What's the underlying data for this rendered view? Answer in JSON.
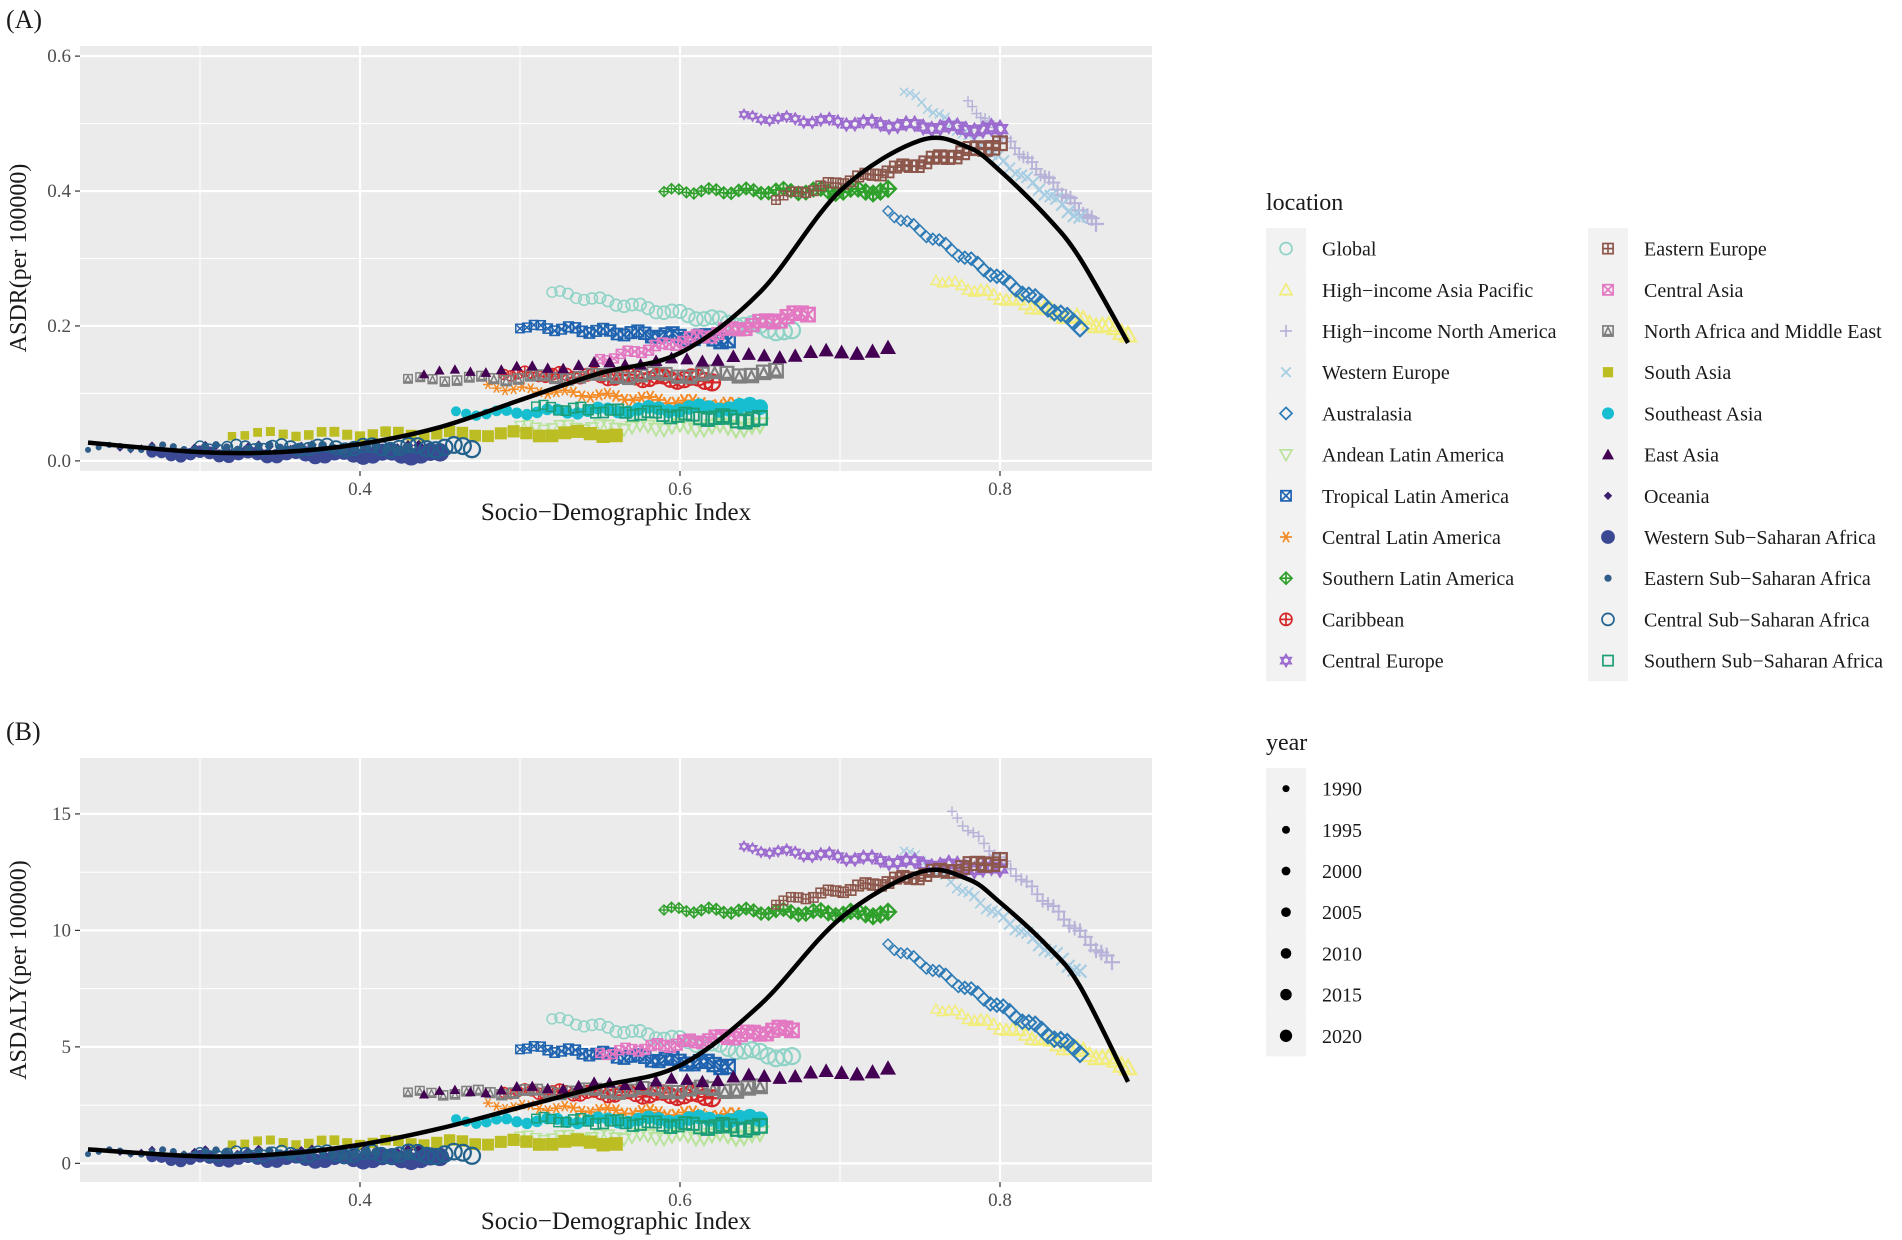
{
  "chart_data": [
    {
      "type": "scatter",
      "panel_label": "(A)",
      "title": "",
      "xlabel": "Socio−Demographic Index",
      "ylabel": "ASDR(per 100000)",
      "xlim": [
        0.225,
        0.895
      ],
      "ylim": [
        -0.015,
        0.615
      ],
      "xticks": [
        0.4,
        0.6,
        0.8
      ],
      "xtick_labels": [
        "0.4",
        "0.6",
        "0.8"
      ],
      "yticks": [
        0.0,
        0.2,
        0.4,
        0.6
      ],
      "ytick_labels": [
        "0.0",
        "0.2",
        "0.4",
        "0.6"
      ],
      "grid": true,
      "series": [
        {
          "name": "Global",
          "x_range": [
            0.52,
            0.67
          ],
          "y_start": 0.25,
          "y_end": 0.19
        },
        {
          "name": "High−income Asia Pacific",
          "x_range": [
            0.76,
            0.88
          ],
          "y_start": 0.27,
          "y_end": 0.19
        },
        {
          "name": "High−income North America",
          "x_range": [
            0.78,
            0.86
          ],
          "y_start": 0.53,
          "y_end": 0.35
        },
        {
          "name": "Western Europe",
          "x_range": [
            0.74,
            0.85
          ],
          "y_start": 0.55,
          "y_end": 0.36
        },
        {
          "name": "Australasia",
          "x_range": [
            0.73,
            0.85
          ],
          "y_start": 0.37,
          "y_end": 0.2
        },
        {
          "name": "Andean Latin America",
          "x_range": [
            0.5,
            0.65
          ],
          "y_start": 0.05,
          "y_end": 0.05
        },
        {
          "name": "Tropical Latin America",
          "x_range": [
            0.5,
            0.63
          ],
          "y_start": 0.2,
          "y_end": 0.18
        },
        {
          "name": "Central Latin America",
          "x_range": [
            0.48,
            0.64
          ],
          "y_start": 0.11,
          "y_end": 0.08
        },
        {
          "name": "Southern Latin America",
          "x_range": [
            0.59,
            0.73
          ],
          "y_start": 0.4,
          "y_end": 0.4
        },
        {
          "name": "Caribbean",
          "x_range": [
            0.49,
            0.62
          ],
          "y_start": 0.13,
          "y_end": 0.12
        },
        {
          "name": "Central Europe",
          "x_range": [
            0.64,
            0.8
          ],
          "y_start": 0.51,
          "y_end": 0.49
        },
        {
          "name": "Eastern Europe",
          "x_range": [
            0.66,
            0.8
          ],
          "y_start": 0.39,
          "y_end": 0.47
        },
        {
          "name": "Central Asia",
          "x_range": [
            0.55,
            0.68
          ],
          "y_start": 0.15,
          "y_end": 0.22
        },
        {
          "name": "North Africa and Middle East",
          "x_range": [
            0.43,
            0.66
          ],
          "y_start": 0.12,
          "y_end": 0.13
        },
        {
          "name": "South Asia",
          "x_range": [
            0.32,
            0.56
          ],
          "y_start": 0.04,
          "y_end": 0.04
        },
        {
          "name": "Southeast Asia",
          "x_range": [
            0.46,
            0.65
          ],
          "y_start": 0.07,
          "y_end": 0.08
        },
        {
          "name": "East Asia",
          "x_range": [
            0.44,
            0.73
          ],
          "y_start": 0.13,
          "y_end": 0.165
        },
        {
          "name": "Oceania",
          "x_range": [
            0.25,
            0.45
          ],
          "y_start": 0.02,
          "y_end": 0.02
        },
        {
          "name": "Western Sub−Saharan Africa",
          "x_range": [
            0.27,
            0.45
          ],
          "y_start": 0.01,
          "y_end": 0.01
        },
        {
          "name": "Eastern Sub−Saharan Africa",
          "x_range": [
            0.23,
            0.43
          ],
          "y_start": 0.02,
          "y_end": 0.02
        },
        {
          "name": "Central Sub−Saharan Africa",
          "x_range": [
            0.3,
            0.47
          ],
          "y_start": 0.02,
          "y_end": 0.02
        },
        {
          "name": "Southern Sub−Saharan Africa",
          "x_range": [
            0.51,
            0.65
          ],
          "y_start": 0.08,
          "y_end": 0.06
        }
      ],
      "smooth": {
        "name": "fit",
        "x": [
          0.23,
          0.3,
          0.35,
          0.4,
          0.45,
          0.5,
          0.55,
          0.6,
          0.65,
          0.7,
          0.75,
          0.78,
          0.8,
          0.83,
          0.85,
          0.88
        ],
        "y": [
          0.027,
          0.013,
          0.013,
          0.025,
          0.05,
          0.09,
          0.13,
          0.16,
          0.25,
          0.4,
          0.475,
          0.465,
          0.43,
          0.36,
          0.3,
          0.175
        ]
      }
    },
    {
      "type": "scatter",
      "panel_label": "(B)",
      "title": "",
      "xlabel": "Socio−Demographic Index",
      "ylabel": "ASDALY(per 100000)",
      "xlim": [
        0.225,
        0.895
      ],
      "ylim": [
        -0.8,
        17.4
      ],
      "xticks": [
        0.4,
        0.6,
        0.8
      ],
      "xtick_labels": [
        "0.4",
        "0.6",
        "0.8"
      ],
      "yticks": [
        0,
        5,
        10,
        15
      ],
      "ytick_labels": [
        "0",
        "5",
        "10",
        "15"
      ],
      "grid": true,
      "series": [
        {
          "name": "Global",
          "x_range": [
            0.52,
            0.67
          ],
          "y_start": 6.2,
          "y_end": 4.5
        },
        {
          "name": "High−income Asia Pacific",
          "x_range": [
            0.76,
            0.88
          ],
          "y_start": 6.7,
          "y_end": 4.2
        },
        {
          "name": "High−income North America",
          "x_range": [
            0.77,
            0.87
          ],
          "y_start": 15.0,
          "y_end": 8.6
        },
        {
          "name": "Western Europe",
          "x_range": [
            0.74,
            0.85
          ],
          "y_start": 13.5,
          "y_end": 8.2
        },
        {
          "name": "Australasia",
          "x_range": [
            0.73,
            0.85
          ],
          "y_start": 9.4,
          "y_end": 4.8
        },
        {
          "name": "Andean Latin America",
          "x_range": [
            0.5,
            0.65
          ],
          "y_start": 1.1,
          "y_end": 1.2
        },
        {
          "name": "Tropical Latin America",
          "x_range": [
            0.5,
            0.63
          ],
          "y_start": 5.0,
          "y_end": 4.2
        },
        {
          "name": "Central Latin America",
          "x_range": [
            0.48,
            0.64
          ],
          "y_start": 2.5,
          "y_end": 2.0
        },
        {
          "name": "Southern Latin America",
          "x_range": [
            0.59,
            0.73
          ],
          "y_start": 10.9,
          "y_end": 10.7
        },
        {
          "name": "Caribbean",
          "x_range": [
            0.49,
            0.62
          ],
          "y_start": 3.1,
          "y_end": 2.9
        },
        {
          "name": "Central Europe",
          "x_range": [
            0.64,
            0.8
          ],
          "y_start": 13.5,
          "y_end": 12.6
        },
        {
          "name": "Eastern Europe",
          "x_range": [
            0.66,
            0.8
          ],
          "y_start": 11.2,
          "y_end": 13.0
        },
        {
          "name": "Central Asia",
          "x_range": [
            0.55,
            0.67
          ],
          "y_start": 4.7,
          "y_end": 5.8
        },
        {
          "name": "North Africa and Middle East",
          "x_range": [
            0.43,
            0.65
          ],
          "y_start": 3.0,
          "y_end": 3.2
        },
        {
          "name": "South Asia",
          "x_range": [
            0.32,
            0.56
          ],
          "y_start": 0.9,
          "y_end": 0.9
        },
        {
          "name": "Southeast Asia",
          "x_range": [
            0.46,
            0.65
          ],
          "y_start": 1.8,
          "y_end": 1.9
        },
        {
          "name": "East Asia",
          "x_range": [
            0.44,
            0.73
          ],
          "y_start": 3.0,
          "y_end": 4.0
        },
        {
          "name": "Oceania",
          "x_range": [
            0.25,
            0.45
          ],
          "y_start": 0.5,
          "y_end": 0.5
        },
        {
          "name": "Western Sub−Saharan Africa",
          "x_range": [
            0.27,
            0.45
          ],
          "y_start": 0.2,
          "y_end": 0.2
        },
        {
          "name": "Eastern Sub−Saharan Africa",
          "x_range": [
            0.23,
            0.43
          ],
          "y_start": 0.5,
          "y_end": 0.4
        },
        {
          "name": "Central Sub−Saharan Africa",
          "x_range": [
            0.3,
            0.47
          ],
          "y_start": 0.4,
          "y_end": 0.4
        },
        {
          "name": "Southern Sub−Saharan Africa",
          "x_range": [
            0.51,
            0.65
          ],
          "y_start": 1.9,
          "y_end": 1.5
        }
      ],
      "smooth": {
        "name": "fit",
        "x": [
          0.23,
          0.3,
          0.35,
          0.4,
          0.45,
          0.5,
          0.55,
          0.6,
          0.65,
          0.7,
          0.75,
          0.78,
          0.8,
          0.83,
          0.85,
          0.88
        ],
        "y": [
          0.6,
          0.3,
          0.4,
          0.8,
          1.5,
          2.4,
          3.3,
          4.2,
          6.8,
          10.5,
          12.5,
          12.2,
          11.2,
          9.3,
          7.6,
          3.5
        ]
      }
    }
  ],
  "legend": {
    "location_title": "location",
    "location_items": [
      {
        "label": "Global",
        "color": "#8fd3c6",
        "shape": "circle-open"
      },
      {
        "label": "High−income Asia Pacific",
        "color": "#f2ec78",
        "shape": "triangle-open"
      },
      {
        "label": "High−income North America",
        "color": "#b7b3d8",
        "shape": "plus"
      },
      {
        "label": "Western Europe",
        "color": "#a7cde3",
        "shape": "cross"
      },
      {
        "label": "Australasia",
        "color": "#2c7bb6",
        "shape": "diamond-open"
      },
      {
        "label": "Andean Latin America",
        "color": "#b8e39a",
        "shape": "triangle-down-open"
      },
      {
        "label": "Tropical Latin America",
        "color": "#1f63b0",
        "shape": "square-cross"
      },
      {
        "label": "Central Latin America",
        "color": "#f58a24",
        "shape": "asterisk"
      },
      {
        "label": "Southern Latin America",
        "color": "#2fa02b",
        "shape": "diamond-plus"
      },
      {
        "label": "Caribbean",
        "color": "#d62728",
        "shape": "circle-plus"
      },
      {
        "label": "Central Europe",
        "color": "#9c6bcf",
        "shape": "star-of-david"
      },
      {
        "label": "Eastern Europe",
        "color": "#8c564b",
        "shape": "square-plus"
      },
      {
        "label": "Central Asia",
        "color": "#e377c2",
        "shape": "square-x"
      },
      {
        "label": "North Africa and Middle East",
        "color": "#7f7f7f",
        "shape": "square-triangle"
      },
      {
        "label": "South Asia",
        "color": "#bcbd22",
        "shape": "square-filled"
      },
      {
        "label": "Southeast Asia",
        "color": "#17becf",
        "shape": "circle-filled"
      },
      {
        "label": "East Asia",
        "color": "#440154",
        "shape": "triangle-filled"
      },
      {
        "label": "Oceania",
        "color": "#3b1f6e",
        "shape": "diamond-filled"
      },
      {
        "label": "Western Sub−Saharan Africa",
        "color": "#3b4994",
        "shape": "circle-filled-large"
      },
      {
        "label": "Eastern Sub−Saharan Africa",
        "color": "#2f5d8a",
        "shape": "circle-filled-small"
      },
      {
        "label": "Central Sub−Saharan Africa",
        "color": "#21618c",
        "shape": "circle-open"
      },
      {
        "label": "Southern Sub−Saharan Africa",
        "color": "#1b9e77",
        "shape": "square-open"
      }
    ],
    "year_title": "year",
    "year_items": [
      {
        "label": "1990",
        "size": 1.6
      },
      {
        "label": "1995",
        "size": 1.8
      },
      {
        "label": "2000",
        "size": 2.0
      },
      {
        "label": "2005",
        "size": 2.2
      },
      {
        "label": "2010",
        "size": 2.4
      },
      {
        "label": "2015",
        "size": 2.6
      },
      {
        "label": "2020",
        "size": 2.8
      }
    ]
  },
  "colors": {
    "panel_background": "#ebebeb",
    "grid": "#ffffff",
    "fit_line": "#000000",
    "legend_key_background": "#f2f2f2",
    "text": "#1a1a1a",
    "tick_text": "#4d4d4d"
  }
}
